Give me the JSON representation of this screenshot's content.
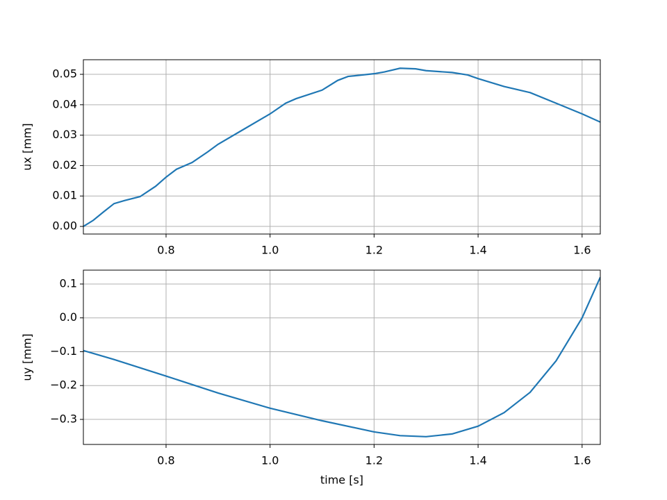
{
  "chart_data": [
    {
      "type": "line",
      "ylabel": "ux [mm]",
      "color": "#1f77b4",
      "grid": true,
      "x": [
        0.641,
        0.66,
        0.68,
        0.7,
        0.72,
        0.75,
        0.78,
        0.8,
        0.82,
        0.85,
        0.88,
        0.9,
        0.95,
        1.0,
        1.03,
        1.05,
        1.1,
        1.13,
        1.15,
        1.2,
        1.22,
        1.25,
        1.28,
        1.3,
        1.35,
        1.38,
        1.4,
        1.45,
        1.5,
        1.55,
        1.6,
        1.635
      ],
      "values": [
        0.0,
        0.002,
        0.0048,
        0.0075,
        0.0085,
        0.0098,
        0.0132,
        0.0162,
        0.0188,
        0.021,
        0.0245,
        0.027,
        0.032,
        0.037,
        0.0405,
        0.042,
        0.0448,
        0.048,
        0.0493,
        0.0502,
        0.0508,
        0.052,
        0.0518,
        0.0512,
        0.0506,
        0.0498,
        0.0486,
        0.046,
        0.044,
        0.0405,
        0.037,
        0.0343
      ],
      "xlim": [
        0.641,
        1.635
      ],
      "ylim": [
        -0.0025,
        0.0548
      ],
      "xticks": [
        0.8,
        {
          "value": 1.0,
          "label": "1.0"
        },
        1.2,
        1.4,
        1.6
      ],
      "yticks": [
        {
          "value": 0,
          "label": "0.00"
        },
        0.01,
        0.02,
        0.03,
        0.04,
        0.05
      ]
    },
    {
      "type": "line",
      "xlabel": "time [s]",
      "ylabel": "uy [mm]",
      "color": "#1f77b4",
      "grid": true,
      "x": [
        0.641,
        0.7,
        0.8,
        0.9,
        1.0,
        1.1,
        1.2,
        1.25,
        1.3,
        1.35,
        1.4,
        1.45,
        1.5,
        1.55,
        1.6,
        1.635
      ],
      "values": [
        -0.0965,
        -0.123,
        -0.172,
        -0.222,
        -0.267,
        -0.304,
        -0.337,
        -0.348,
        -0.351,
        -0.343,
        -0.32,
        -0.28,
        -0.22,
        -0.127,
        0.0,
        0.12
      ],
      "xlim": [
        0.641,
        1.635
      ],
      "ylim": [
        -0.374,
        0.141
      ],
      "xticks": [
        0.8,
        {
          "value": 1.0,
          "label": "1.0"
        },
        1.2,
        1.4,
        1.6
      ],
      "yticks": [
        {
          "value": -0.3,
          "label": "−0.3"
        },
        {
          "value": -0.2,
          "label": "−0.2"
        },
        {
          "value": -0.1,
          "label": "−0.1"
        },
        {
          "value": 0,
          "label": "0.0"
        },
        0.1
      ]
    }
  ]
}
